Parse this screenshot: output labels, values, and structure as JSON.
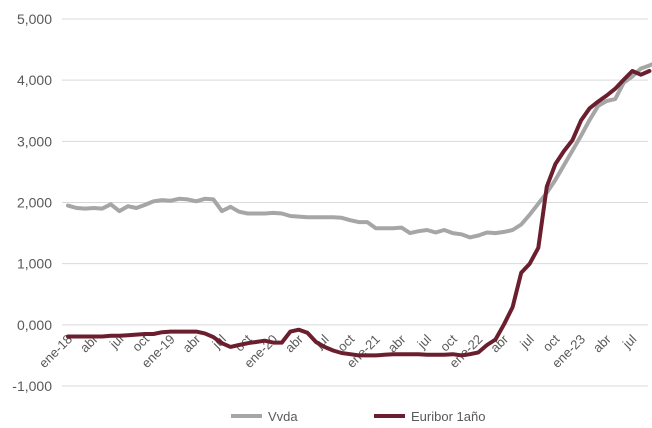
{
  "chart_data": {
    "type": "line",
    "title": "",
    "xlabel": "",
    "ylabel": "",
    "ylim": [
      -1,
      5
    ],
    "y_ticks": [
      -1,
      0,
      1,
      2,
      3,
      4,
      5
    ],
    "y_tick_labels": [
      "-1,000",
      "0,000",
      "1,000",
      "2,000",
      "3,000",
      "4,000",
      "5,000"
    ],
    "grid": "horizontal",
    "legend_position": "bottom",
    "x_tick_labels": [
      "ene-18",
      "abr",
      "jul",
      "oct",
      "ene-19",
      "abr",
      "jul",
      "oct",
      "ene-20",
      "abr",
      "jul",
      "oct",
      "ene-21",
      "abr",
      "jul",
      "oct",
      "ene-22",
      "abr",
      "jul",
      "oct",
      "ene-23",
      "abr",
      "jul"
    ],
    "series": [
      {
        "name": "Vvda",
        "color": "#a6a6a6",
        "values": [
          1.95,
          1.91,
          1.9,
          1.91,
          1.9,
          1.97,
          1.86,
          1.94,
          1.91,
          1.96,
          2.02,
          2.04,
          2.03,
          2.06,
          2.05,
          2.02,
          2.06,
          2.05,
          1.86,
          1.93,
          1.85,
          1.82,
          1.82,
          1.82,
          1.83,
          1.82,
          1.78,
          1.77,
          1.76,
          1.76,
          1.76,
          1.76,
          1.75,
          1.71,
          1.68,
          1.68,
          1.58,
          1.58,
          1.58,
          1.59,
          1.5,
          1.53,
          1.55,
          1.51,
          1.55,
          1.5,
          1.48,
          1.43,
          1.46,
          1.51,
          1.5,
          1.52,
          1.55,
          1.64,
          1.8,
          1.98,
          2.16,
          2.37,
          2.61,
          2.85,
          3.09,
          3.35,
          3.58,
          3.66,
          3.69,
          3.96,
          4.06,
          4.19,
          4.24,
          4.3
        ]
      },
      {
        "name": "Euribor 1año",
        "color": "#6b1e2e",
        "values": [
          -0.19,
          -0.19,
          -0.19,
          -0.19,
          -0.19,
          -0.18,
          -0.18,
          -0.17,
          -0.16,
          -0.15,
          -0.15,
          -0.12,
          -0.11,
          -0.11,
          -0.11,
          -0.11,
          -0.14,
          -0.2,
          -0.3,
          -0.36,
          -0.33,
          -0.3,
          -0.28,
          -0.26,
          -0.29,
          -0.29,
          -0.11,
          -0.08,
          -0.13,
          -0.28,
          -0.36,
          -0.42,
          -0.46,
          -0.48,
          -0.5,
          -0.5,
          -0.5,
          -0.49,
          -0.48,
          -0.48,
          -0.48,
          -0.48,
          -0.49,
          -0.49,
          -0.49,
          -0.48,
          -0.5,
          -0.48,
          -0.45,
          -0.33,
          -0.24,
          0.01,
          0.29,
          0.85,
          1.0,
          1.26,
          2.26,
          2.63,
          2.84,
          3.02,
          3.34,
          3.54,
          3.65,
          3.75,
          3.86,
          4.01,
          4.15,
          4.09,
          4.15
        ]
      }
    ]
  }
}
